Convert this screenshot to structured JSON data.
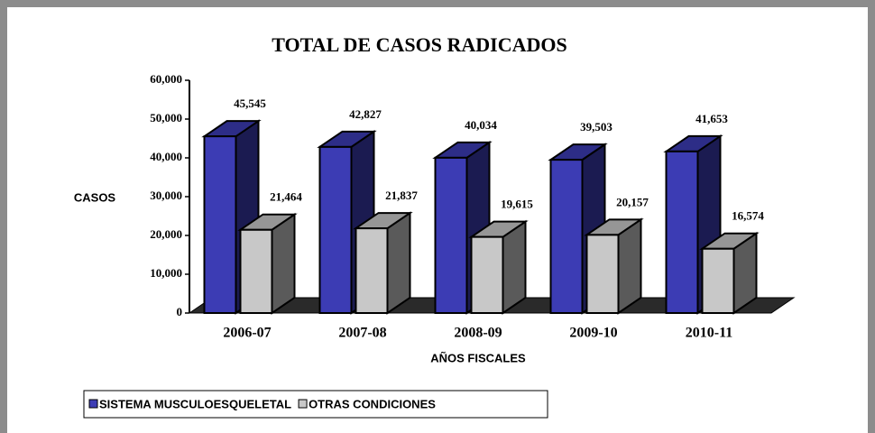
{
  "chart_data": {
    "type": "bar3d",
    "title": "TOTAL DE CASOS RADICADOS",
    "y_label": "CASOS",
    "x_label": "AÑOS FISCALES",
    "categories": [
      "2006-07",
      "2007-08",
      "2008-09",
      "2009-10",
      "2010-11"
    ],
    "series": [
      {
        "name": "SISTEMA MUSCULOESQUELETAL",
        "color": "#3c3cb4",
        "values": [
          45545,
          42827,
          40034,
          39503,
          41653
        ],
        "value_labels": [
          "45,545",
          "42,827",
          "40,034",
          "39,503",
          "41,653"
        ]
      },
      {
        "name": "OTRAS CONDICIONES",
        "color": "#c8c8c8",
        "values": [
          21464,
          21837,
          19615,
          20157,
          16574
        ],
        "value_labels": [
          "21,464",
          "21,837",
          "19,615",
          "20,157",
          "16,574"
        ]
      }
    ],
    "ylim": [
      0,
      60000
    ],
    "yticks": [
      0,
      {
        "value": 10000,
        "label": "10,000"
      },
      {
        "value": 20000,
        "label": "20,000"
      },
      {
        "value": 30000,
        "label": "30,000"
      },
      {
        "value": 40000,
        "label": "40,000"
      },
      {
        "value": 50000,
        "label": "50,000"
      },
      {
        "value": 60000,
        "label": "60,000"
      }
    ],
    "legend": "bottom-left"
  }
}
